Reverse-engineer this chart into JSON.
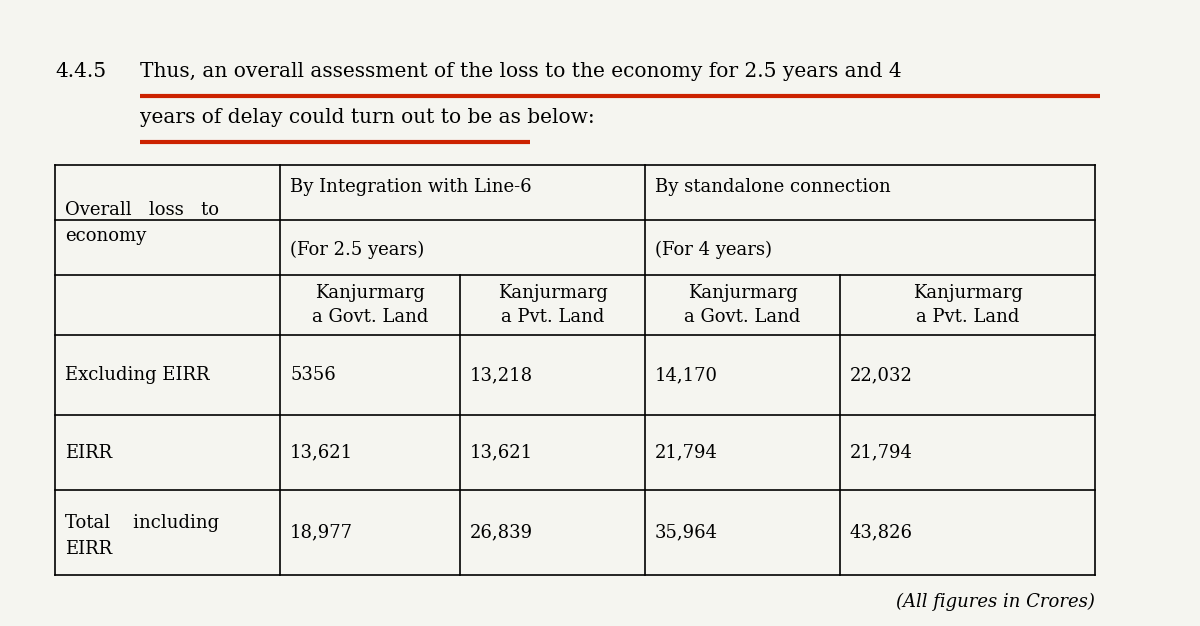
{
  "section_number": "4.4.5",
  "heading_line1": "Thus, an overall assessment of the loss to the economy for 2.5 years and 4",
  "heading_line2": "years of delay could turn out to be as below:",
  "underline_color": "#cc2200",
  "background_color": "#f5f5f0",
  "table": {
    "rows": [
      [
        "Excluding EIRR",
        "5356",
        "13,218",
        "14,170",
        "22,032"
      ],
      [
        "EIRR",
        "13,621",
        "13,621",
        "21,794",
        "21,794"
      ],
      [
        "Total    including\nEIRR",
        "18,977",
        "26,839",
        "35,964",
        "43,826"
      ]
    ],
    "footer": "(All figures in Crores)"
  },
  "font_family": "DejaVu Serif",
  "heading_fontsize": 14.5,
  "table_fontsize": 13.0
}
